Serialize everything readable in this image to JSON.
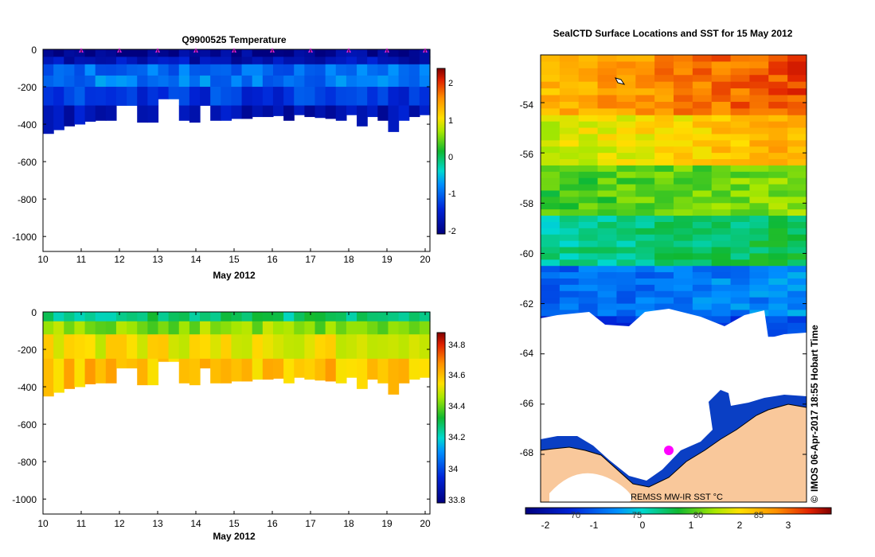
{
  "chart_data": [
    {
      "type": "heatmap",
      "title": "Q9900525  Temperature",
      "xlabel": "May 2012",
      "x_ticks": [
        "10",
        "11",
        "12",
        "13",
        "14",
        "15",
        "16",
        "17",
        "18",
        "19",
        "20"
      ],
      "y_ticks": [
        "0",
        "-200",
        "-400",
        "-600",
        "-800",
        "-1000"
      ],
      "xlim": [
        10,
        20.1
      ],
      "ylim": [
        -1080,
        0
      ],
      "colorbar_ticks": [
        "2",
        "1",
        "0",
        "-1",
        "-2"
      ],
      "colorbar_range": [
        -2.1,
        2.4
      ],
      "profile_days": [
        11,
        12,
        13,
        14,
        15,
        16,
        17,
        18,
        19,
        20
      ],
      "profile_marker_color": "#e020e0",
      "bottom_depth": [
        -450,
        -430,
        -410,
        -400,
        -385,
        -380,
        -380,
        -300,
        -300,
        -390,
        -390,
        -265,
        -265,
        -380,
        -390,
        -300,
        -380,
        -380,
        -370,
        -370,
        -360,
        -360,
        -355,
        -380,
        -350,
        -360,
        -365,
        -370,
        -380,
        -350,
        -410,
        -360,
        -380,
        -440,
        -380,
        -360,
        -350
      ],
      "colormap": "blue-cyan-green-yellow-red",
      "layers": [
        {
          "depth": [
            0,
            -40
          ],
          "value": -1.95
        },
        {
          "depth": [
            -40,
            -80
          ],
          "value": -1.7
        },
        {
          "depth": [
            -80,
            -140
          ],
          "value": -1.0
        },
        {
          "depth": [
            -140,
            -200
          ],
          "value": -0.9
        },
        {
          "depth": [
            -200,
            -300
          ],
          "value": -1.3
        },
        {
          "depth": [
            -300,
            -500
          ],
          "value": -1.7
        }
      ]
    },
    {
      "type": "heatmap",
      "title": "",
      "xlabel": "May 2012",
      "x_ticks": [
        "10",
        "11",
        "12",
        "13",
        "14",
        "15",
        "16",
        "17",
        "18",
        "19",
        "20"
      ],
      "y_ticks": [
        "0",
        "-200",
        "-400",
        "-600",
        "-800",
        "-1000"
      ],
      "xlim": [
        10,
        20.1
      ],
      "ylim": [
        -1080,
        0
      ],
      "colorbar_ticks": [
        "34.8",
        "34.6",
        "34.4",
        "34.2",
        "34",
        "33.8"
      ],
      "colorbar_range": [
        33.78,
        34.9
      ],
      "colormap": "blue-cyan-green-yellow-red",
      "layers": [
        {
          "depth": [
            0,
            -50
          ],
          "value": 34.28
        },
        {
          "depth": [
            -50,
            -120
          ],
          "value": 34.45
        },
        {
          "depth": [
            -120,
            -250
          ],
          "value": 34.55
        },
        {
          "depth": [
            -250,
            -500
          ],
          "value": 34.62
        }
      ]
    },
    {
      "type": "heatmap",
      "title": "SealCTD Surface Locations and SST for 15 May 2012",
      "y_ticks": [
        "-54",
        "-56",
        "-58",
        "-60",
        "-62",
        "-64",
        "-66",
        "-68"
      ],
      "ylim": [
        -69.9,
        -52.1
      ],
      "x_ticks_top_row": [
        "-2",
        "-1",
        "0",
        "1",
        "2",
        "3"
      ],
      "x_ticks_lon": [
        "70",
        "75",
        "80",
        "85"
      ],
      "colorbar_range": [
        -2.4,
        3.6
      ],
      "source_label": "REMSS MW-IR SST °C",
      "stamp": "IMOS 06-Apr-2017 18:55 Hobart Time",
      "copyright_symbol": "©",
      "land_color": "#f9c89b",
      "sea_ice_color": "#ffffff",
      "seal_location_color": "#ff00ff",
      "sst_bands": [
        {
          "lat": [
            -52.1,
            -54.5
          ],
          "value": 2.6
        },
        {
          "lat": [
            -54.5,
            -56.5
          ],
          "value": 1.9
        },
        {
          "lat": [
            -56.5,
            -58.5
          ],
          "value": 1.0
        },
        {
          "lat": [
            -58.5,
            -60.5
          ],
          "value": 0.3
        },
        {
          "lat": [
            -60.5,
            -62.5
          ],
          "value": -0.8
        },
        {
          "lat": [
            -62.5,
            -63.3
          ],
          "value": -1.3
        }
      ]
    }
  ]
}
